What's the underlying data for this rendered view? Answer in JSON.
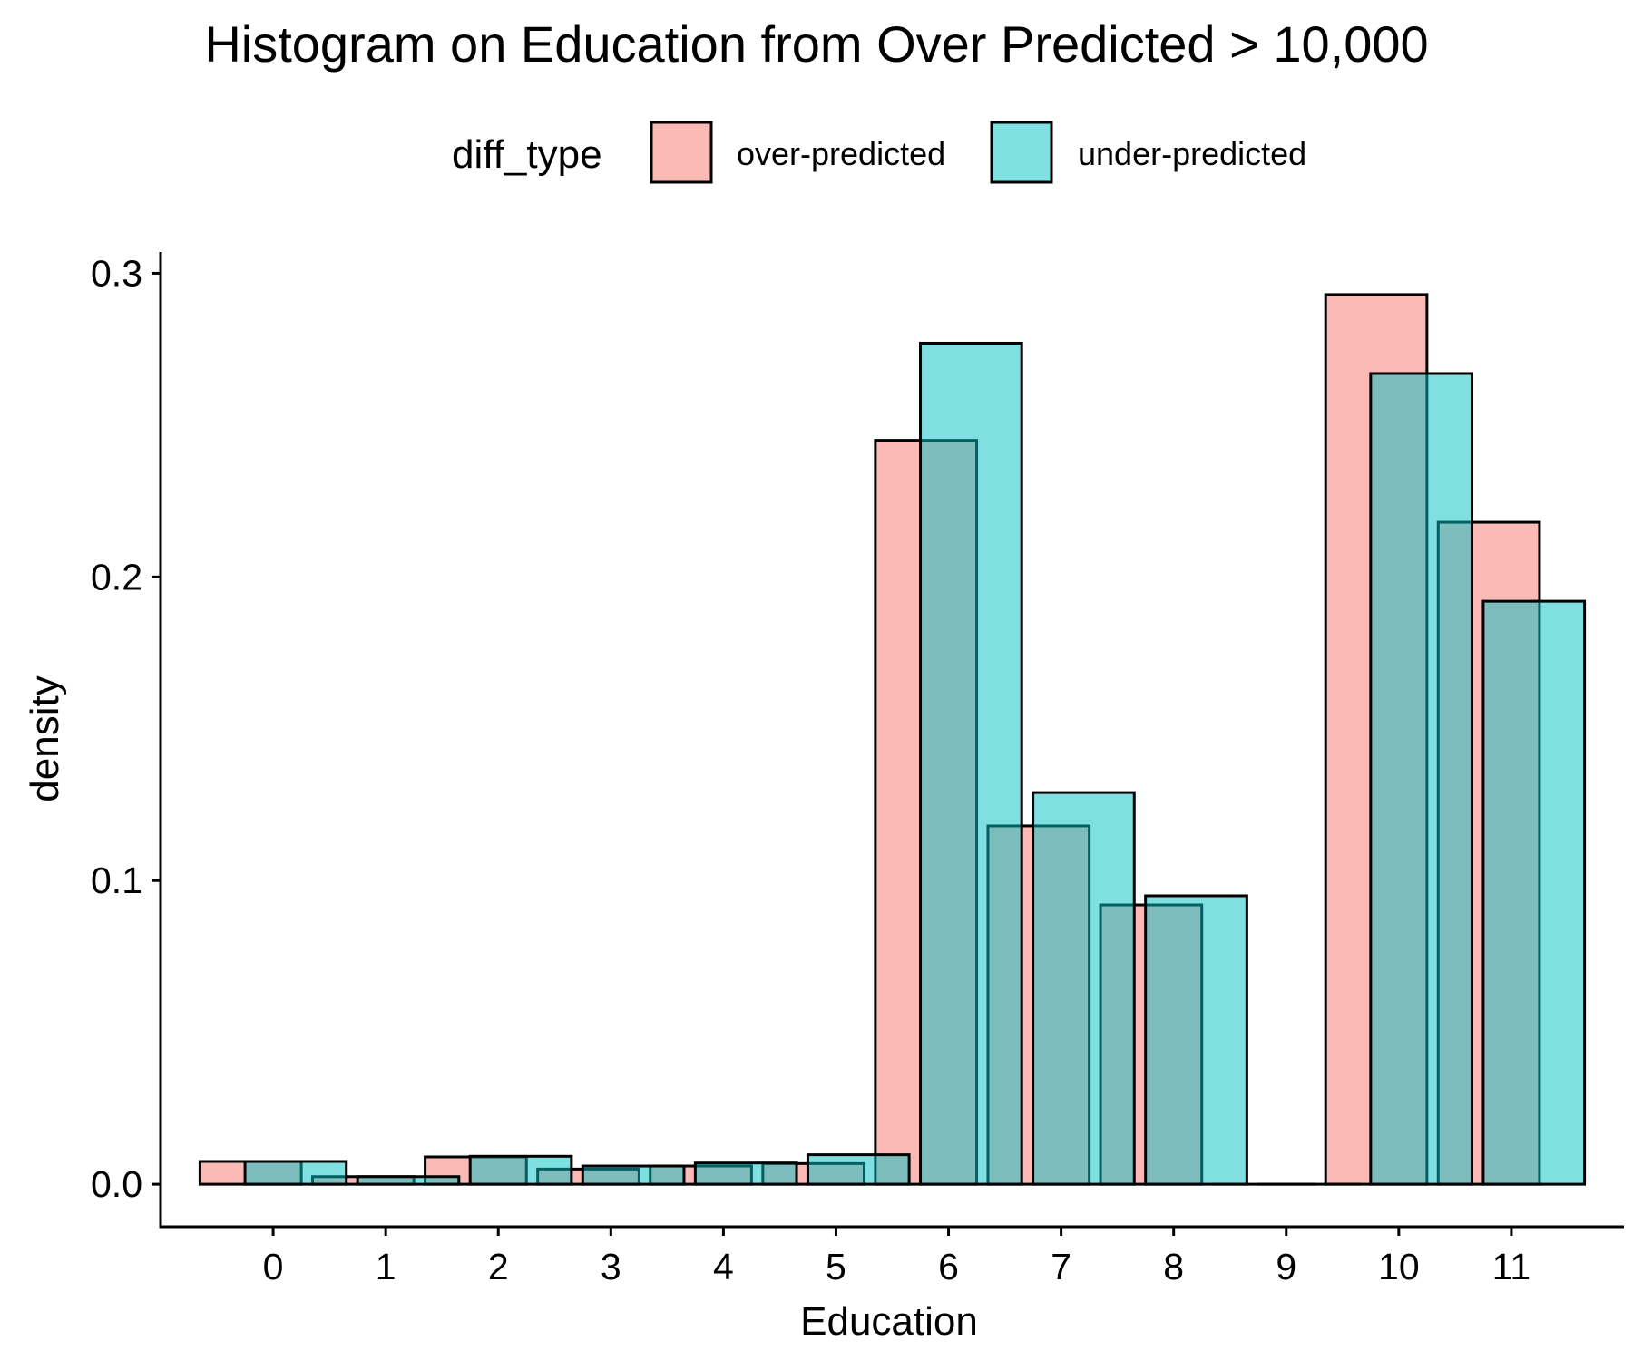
{
  "chart_data": {
    "type": "bar",
    "title": "Histogram on Education from Over Predicted > 10,000",
    "xlabel": "Education",
    "ylabel": "density",
    "categories": [
      "0",
      "1",
      "2",
      "3",
      "4",
      "5",
      "6",
      "7",
      "8",
      "9",
      "10",
      "11"
    ],
    "series": [
      {
        "name": "over-predicted",
        "color": "#F8766D",
        "values": [
          0.0075,
          0.0025,
          0.009,
          0.005,
          0.006,
          0.0068,
          0.245,
          0.118,
          0.092,
          0.0,
          0.293,
          0.218
        ]
      },
      {
        "name": "under-predicted",
        "color": "#00BFC4",
        "values": [
          0.0075,
          0.0025,
          0.0092,
          0.006,
          0.007,
          0.0097,
          0.277,
          0.129,
          0.095,
          0.0,
          0.267,
          0.192
        ]
      }
    ],
    "yticks": [
      0.0,
      0.1,
      0.2,
      0.3
    ],
    "ytick_labels": [
      "0.0",
      "0.1",
      "0.2",
      "0.3"
    ],
    "ylim": [
      -0.014,
      0.307
    ],
    "xlim": [
      -1.0,
      12.0
    ],
    "grid": false,
    "legend": {
      "title": "diff_type",
      "position": "top",
      "labels": [
        "over-predicted",
        "under-predicted"
      ]
    }
  }
}
